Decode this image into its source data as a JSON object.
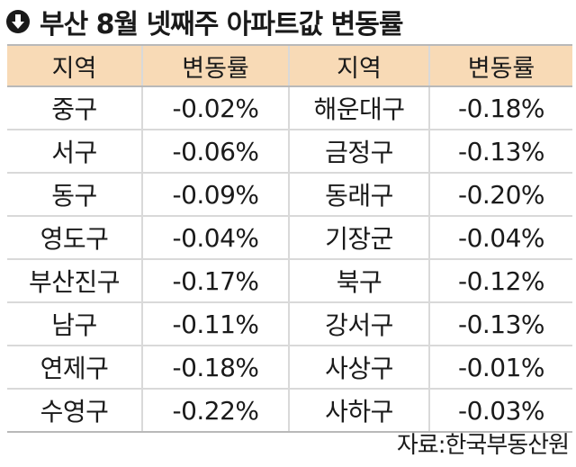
{
  "title": "부산 8월 넷째주 아파트값 변동률",
  "icon": "down-arrow-circle-icon",
  "header": {
    "region1": "지역",
    "change1": "변동률",
    "region2": "지역",
    "change2": "변동률"
  },
  "rows": [
    {
      "region1": "중구",
      "change1": "-0.02%",
      "region2": "해운대구",
      "change2": "-0.18%"
    },
    {
      "region1": "서구",
      "change1": "-0.06%",
      "region2": "금정구",
      "change2": "-0.13%"
    },
    {
      "region1": "동구",
      "change1": "-0.09%",
      "region2": "동래구",
      "change2": "-0.20%"
    },
    {
      "region1": "영도구",
      "change1": "-0.04%",
      "region2": "기장군",
      "change2": "-0.04%"
    },
    {
      "region1": "부산진구",
      "change1": "-0.17%",
      "region2": "북구",
      "change2": "-0.12%"
    },
    {
      "region1": "남구",
      "change1": "-0.11%",
      "region2": "강서구",
      "change2": "-0.13%"
    },
    {
      "region1": "연제구",
      "change1": "-0.18%",
      "region2": "사상구",
      "change2": "-0.01%"
    },
    {
      "region1": "수영구",
      "change1": "-0.22%",
      "region2": "사하구",
      "change2": "-0.03%"
    }
  ],
  "source": "자료:한국부동산원",
  "colors": {
    "header_bg": "#f8dab6",
    "grid": "#d9d9d9",
    "text": "#1a1a1a"
  }
}
